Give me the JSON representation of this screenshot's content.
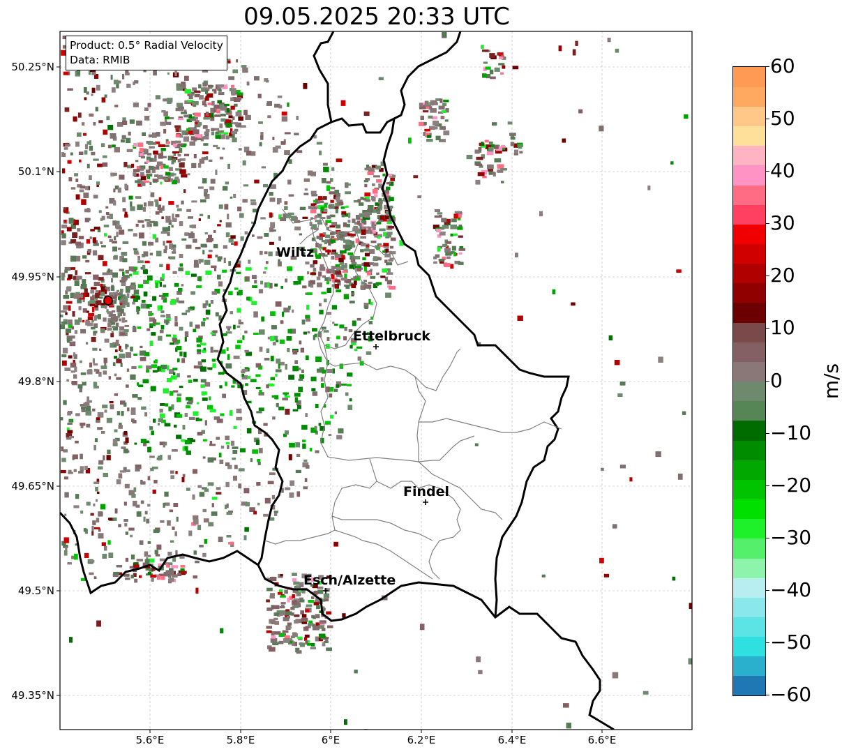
{
  "title": "09.05.2025 20:33 UTC",
  "info_box": {
    "product": "Product: 0.5° Radial Velocity",
    "data": "Data: RMIB"
  },
  "lat_labels": [
    "50.25°N",
    "50.1°N",
    "49.95°N",
    "49.8°N",
    "49.65°N",
    "49.5°N",
    "49.35°N"
  ],
  "lon_labels": [
    "5.6°E",
    "5.8°E",
    "6°E",
    "6.2°E",
    "6.4°E",
    "6.6°E"
  ],
  "cities": [
    {
      "name": "Wiltz",
      "marker": false
    },
    {
      "name": "Ettelbruck",
      "marker": true
    },
    {
      "name": "Findel",
      "marker": true
    },
    {
      "name": "Esch/Alzette",
      "marker": true
    }
  ],
  "colorbar": {
    "label": "m/s",
    "ticks": [
      "60",
      "50",
      "40",
      "30",
      "20",
      "10",
      "0",
      "−10",
      "−20",
      "−30",
      "−40",
      "−50",
      "−60"
    ],
    "range": [
      -60,
      60
    ],
    "colors": [
      "#1f77b4",
      "#2ab0cc",
      "#2ee0e0",
      "#5ce4e4",
      "#8ae8ec",
      "#b8eef0",
      "#8ef4ac",
      "#54f06c",
      "#1ef02a",
      "#00e000",
      "#00c400",
      "#00a800",
      "#008c00",
      "#006c00",
      "#568656",
      "#6e8a6e",
      "#8a7878",
      "#846064",
      "#7a4a4a",
      "#6c0000",
      "#900000",
      "#b00000",
      "#d00000",
      "#f00000",
      "#ff4060",
      "#ff6c84",
      "#ff94c4",
      "#ffb4c4",
      "#ffe09a",
      "#ffc888",
      "#ffa860",
      "#ff9a55"
    ]
  },
  "radar_marker": "radar-site-dot",
  "colors": {
    "border": "#000000",
    "canton": "#808080",
    "grid": "#b0b0b0"
  }
}
